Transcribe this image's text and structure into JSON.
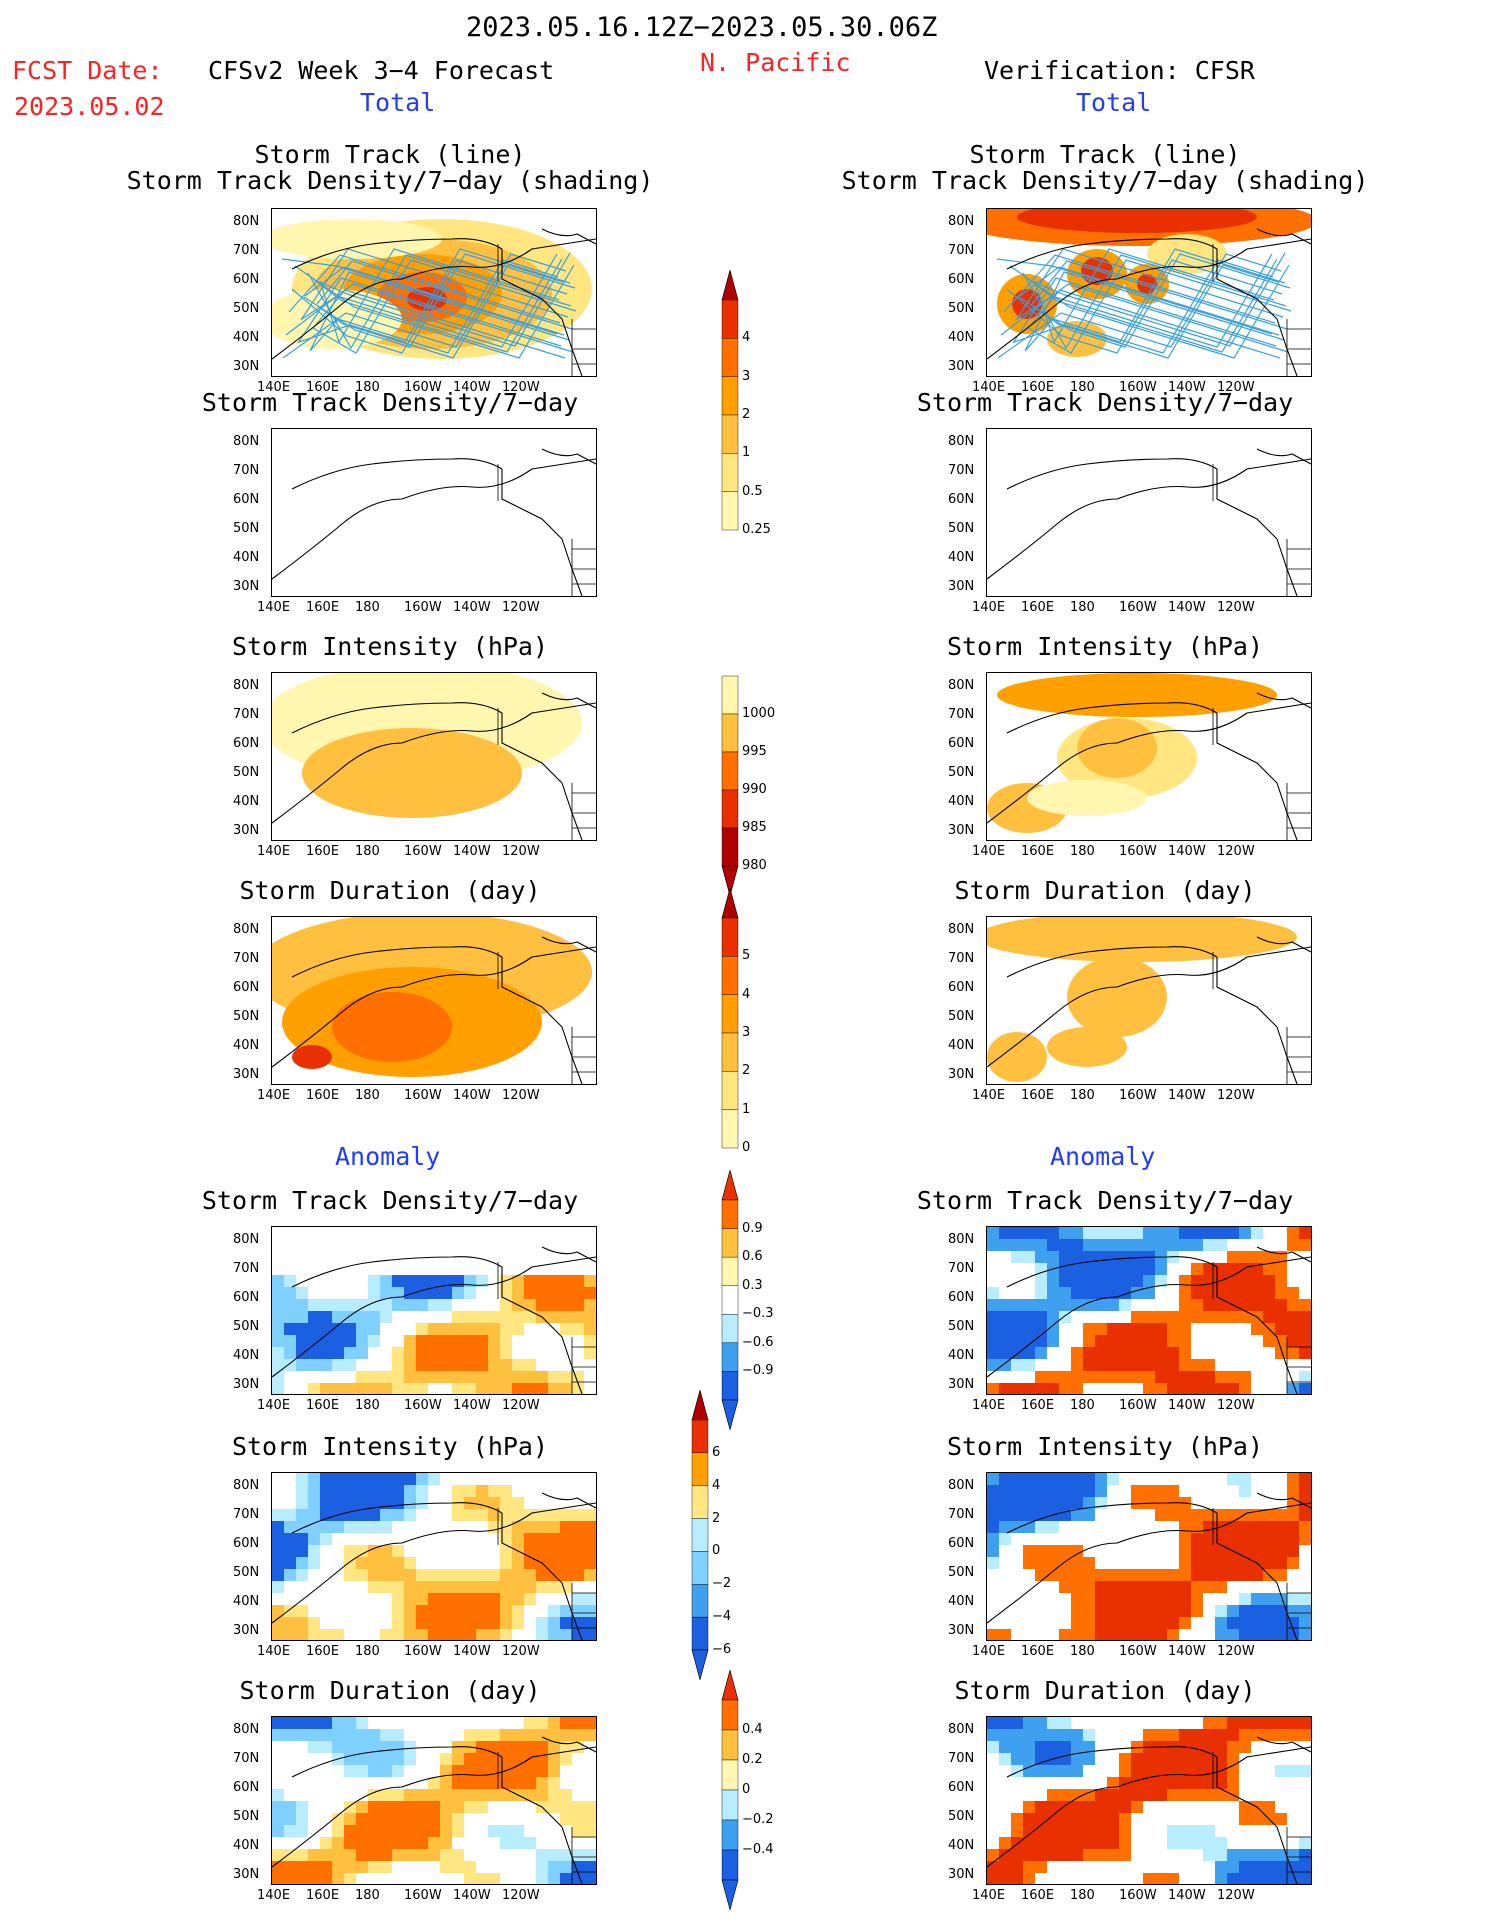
{
  "header": {
    "period": "2023.05.16.12Z−2023.05.30.06Z",
    "region": "N. Pacific",
    "fcst_label": "FCST Date:",
    "fcst_date": "2023.05.02",
    "left_title": "CFSv2 Week 3−4 Forecast",
    "right_title": "Verification: CFSR",
    "left_sub": "Total",
    "right_sub": "Total",
    "anomaly_left": "Anomaly",
    "anomaly_right": "Anomaly"
  },
  "axes": {
    "lat_ticks": [
      "80N",
      "70N",
      "60N",
      "50N",
      "40N",
      "30N"
    ],
    "lon_ticks": [
      "140E",
      "160E",
      "180",
      "160W",
      "140W",
      "120W"
    ]
  },
  "panels": {
    "row1_title_a": "Storm Track (line)",
    "row1_title_b": "Storm Track Density/7−day (shading)",
    "density": "Storm Track Density/7−day",
    "intensity": "Storm Intensity (hPa)",
    "duration": "Storm Duration (day)"
  },
  "colorbars": {
    "density_total": [
      "4",
      "3",
      "2",
      "1",
      "0.5",
      "0.25"
    ],
    "intensity_total": [
      "1000",
      "995",
      "990",
      "985",
      "980"
    ],
    "duration_total": [
      "5",
      "4",
      "3",
      "2",
      "1",
      "0"
    ],
    "density_anom": [
      "0.9",
      "0.6",
      "0.3",
      "−0.3",
      "−0.6",
      "−0.9"
    ],
    "intensity_anom": [
      "6",
      "4",
      "2",
      "0",
      "−2",
      "−4",
      "−6"
    ],
    "duration_anom": [
      "0.4",
      "0.2",
      "0",
      "−0.2",
      "−0.4"
    ]
  },
  "colors": {
    "warm": [
      "#fff7b0",
      "#ffe680",
      "#ffc040",
      "#ffa000",
      "#ff7000",
      "#e83000",
      "#b00000"
    ],
    "cool": [
      "#b8ecff",
      "#80d0ff",
      "#40a0f0",
      "#1a60e0"
    ],
    "track_line": "#3aa0e0"
  }
}
